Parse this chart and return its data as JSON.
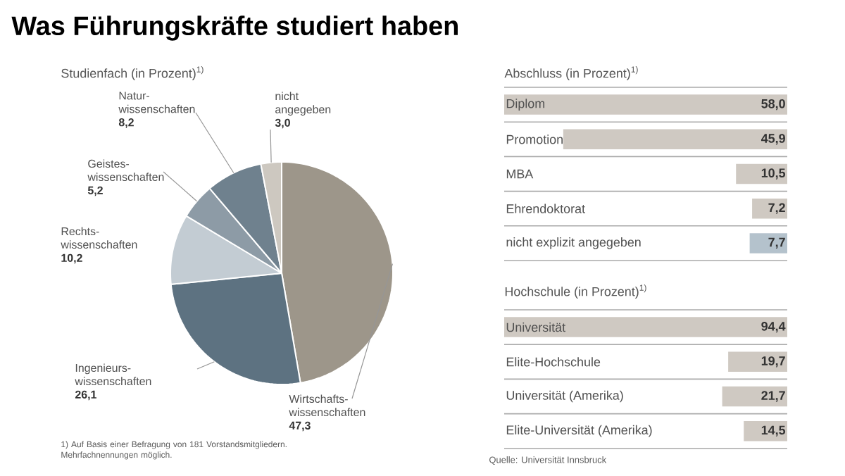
{
  "chart_data": [
    {
      "type": "pie",
      "title": "Was Führungskräfte studiert haben",
      "subtitle": "Studienfach (in Prozent)$^{1)}$",
      "categories": [
        "Wirtschafts-wissenschaften",
        "Ingenieurs-wissenschaften",
        "Rechts-wissenschaften",
        "Geistes-wissenschaften",
        "Natur-wissenschaften",
        "nicht angegeben"
      ],
      "values": [
        47.3,
        26.1,
        10.2,
        5.2,
        8.2,
        3.0
      ],
      "value_labels": [
        "47,3",
        "26,1",
        "10,2",
        "5,2",
        "8,2",
        "3,0"
      ],
      "colors": [
        "#9d968a",
        "#5d7281",
        "#c3ccd3",
        "#8d9ba6",
        "#6f818e",
        "#cdc8c0"
      ],
      "annotations": [
        "1) Auf Basis einer Befragung von 181 Vorstandsmitgliedern. Mehrfachnennungen möglich."
      ]
    },
    {
      "type": "bar",
      "orientation": "horizontal",
      "title": "Abschluss (in Prozent)$^{1)}$",
      "categories": [
        "Diplom",
        "Promotion",
        "MBA",
        "Ehrendoktorat",
        "nicht explizit angegeben"
      ],
      "values": [
        58.0,
        45.9,
        10.5,
        7.2,
        7.7
      ],
      "value_labels": [
        "58,0",
        "45,9",
        "10,5",
        "7,2",
        "7,7"
      ],
      "colors": [
        "#cfc9c2",
        "#cfc9c2",
        "#cfc9c2",
        "#cfc9c2",
        "#b4c2cc"
      ]
    },
    {
      "type": "bar",
      "orientation": "horizontal",
      "title": "Hochschule (in Prozent)$^{1)}$",
      "categories": [
        "Universität",
        "Elite-Hochschule",
        "Universität (Amerika)",
        "Elite-Universität (Amerika)"
      ],
      "values": [
        94.4,
        19.7,
        21.7,
        14.5
      ],
      "value_labels": [
        "94,4",
        "19,7",
        "21,7",
        "14,5"
      ],
      "colors": [
        "#cfc9c2",
        "#cfc9c2",
        "#cfc9c2",
        "#cfc9c2"
      ],
      "annotations": [
        "Quelle: Universität Innsbruck"
      ]
    }
  ]
}
